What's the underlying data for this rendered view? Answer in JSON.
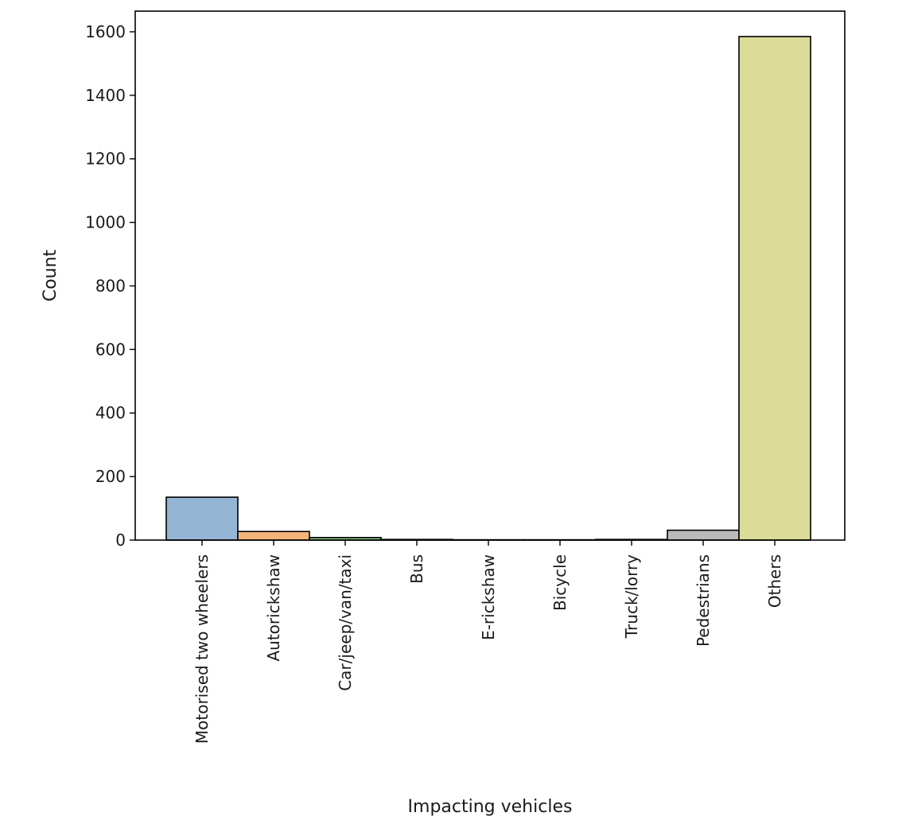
{
  "chart_data": {
    "type": "bar",
    "title": "",
    "xlabel": "Impacting vehicles",
    "ylabel": "Count",
    "ylim": [
      0,
      1665
    ],
    "yticks": [
      0,
      200,
      400,
      600,
      800,
      1000,
      1200,
      1400,
      1600
    ],
    "grid": false,
    "legend": "none",
    "categories": [
      "Motorised two wheelers",
      "Autorickshaw",
      "Car/jeep/van/taxi",
      "Bus",
      "E-rickshaw",
      "Bicycle",
      "Truck/lorry",
      "Pedestrians",
      "Others"
    ],
    "values": [
      135,
      27,
      8,
      2,
      1,
      1,
      2,
      31,
      1585
    ],
    "colors": [
      "#94b6d4",
      "#f5b579",
      "#8cc98c",
      "#e49595",
      "#baa4d3",
      "#b99890",
      "#ecb3de",
      "#bbbbbb",
      "#dcdc98"
    ]
  }
}
